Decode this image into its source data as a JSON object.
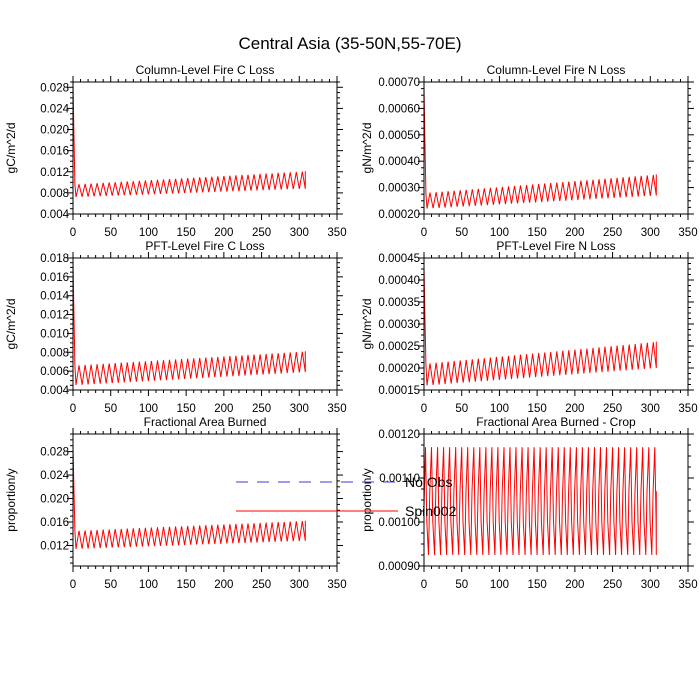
{
  "figure_title": "Central Asia (35-50N,55-70E)",
  "legend": [
    {
      "label": "No Obs",
      "color": "#3b3bd6",
      "style": "dashed"
    },
    {
      "label": "Spin002",
      "color": "#ff0000",
      "style": "solid"
    }
  ],
  "chart_data": [
    {
      "type": "line",
      "title": "Column-Level Fire C Loss",
      "xlabel": "",
      "ylabel": "gC/m^2/d",
      "xlim": [
        0,
        350
      ],
      "ylim": [
        0.004,
        0.029
      ],
      "xticks": [
        0,
        50,
        100,
        150,
        200,
        250,
        300,
        350
      ],
      "xtick_labels": [
        "0",
        "50",
        "100",
        "150",
        "200",
        "250",
        "300",
        "350"
      ],
      "yticks": [
        0.004,
        0.008,
        0.012,
        0.016,
        0.02,
        0.024,
        0.028
      ],
      "ytick_labels": [
        "0.004",
        "0.008",
        "0.012",
        "0.016",
        "0.020",
        "0.024",
        "0.028"
      ],
      "series": [
        {
          "name": "Spin002",
          "color": "#ff0000",
          "x_end": 308,
          "initial_value": 0.029,
          "trough_start": 0.0072,
          "trough_end": 0.0088,
          "peak_start": 0.0096,
          "peak_end": 0.0121,
          "cycle_length": 8
        }
      ]
    },
    {
      "type": "line",
      "title": "Column-Level Fire N Loss",
      "xlabel": "",
      "ylabel": "gN/m^2/d",
      "xlim": [
        0,
        350
      ],
      "ylim": [
        0.0002,
        0.0007
      ],
      "xticks": [
        0,
        50,
        100,
        150,
        200,
        250,
        300,
        350
      ],
      "xtick_labels": [
        "0",
        "50",
        "100",
        "150",
        "200",
        "250",
        "300",
        "350"
      ],
      "yticks": [
        0.0002,
        0.0003,
        0.0004,
        0.0005,
        0.0006,
        0.0007
      ],
      "ytick_labels": [
        "0.00020",
        "0.00030",
        "0.00040",
        "0.00050",
        "0.00060",
        "0.00070"
      ],
      "series": [
        {
          "name": "Spin002",
          "color": "#ff0000",
          "x_end": 308,
          "initial_value": 0.00068,
          "trough_start": 0.00022,
          "trough_end": 0.00027,
          "peak_start": 0.00028,
          "peak_end": 0.00035,
          "cycle_length": 8
        }
      ]
    },
    {
      "type": "line",
      "title": "PFT-Level Fire C Loss",
      "xlabel": "",
      "ylabel": "gC/m^2/d",
      "xlim": [
        0,
        350
      ],
      "ylim": [
        0.004,
        0.018
      ],
      "xticks": [
        0,
        50,
        100,
        150,
        200,
        250,
        300,
        350
      ],
      "xtick_labels": [
        "0",
        "50",
        "100",
        "150",
        "200",
        "250",
        "300",
        "350"
      ],
      "yticks": [
        0.004,
        0.006,
        0.008,
        0.01,
        0.012,
        0.014,
        0.016,
        0.018
      ],
      "ytick_labels": [
        "0.004",
        "0.006",
        "0.008",
        "0.010",
        "0.012",
        "0.014",
        "0.016",
        "0.018"
      ],
      "series": [
        {
          "name": "Spin002",
          "color": "#ff0000",
          "x_end": 308,
          "initial_value": 0.0178,
          "trough_start": 0.0045,
          "trough_end": 0.0059,
          "peak_start": 0.0066,
          "peak_end": 0.0081,
          "cycle_length": 8
        }
      ]
    },
    {
      "type": "line",
      "title": "PFT-Level Fire N Loss",
      "xlabel": "",
      "ylabel": "gN/m^2/d",
      "xlim": [
        0,
        350
      ],
      "ylim": [
        0.00015,
        0.00045
      ],
      "xticks": [
        0,
        50,
        100,
        150,
        200,
        250,
        300,
        350
      ],
      "xtick_labels": [
        "0",
        "50",
        "100",
        "150",
        "200",
        "250",
        "300",
        "350"
      ],
      "yticks": [
        0.00015,
        0.0002,
        0.00025,
        0.0003,
        0.00035,
        0.0004,
        0.00045
      ],
      "ytick_labels": [
        "0.00015",
        "0.00020",
        "0.00025",
        "0.00030",
        "0.00035",
        "0.00040",
        "0.00045"
      ],
      "series": [
        {
          "name": "Spin002",
          "color": "#ff0000",
          "x_end": 308,
          "initial_value": 0.00043,
          "trough_start": 0.00016,
          "trough_end": 0.0002,
          "peak_start": 0.00021,
          "peak_end": 0.00026,
          "cycle_length": 8
        }
      ]
    },
    {
      "type": "line",
      "title": "Fractional Area Burned",
      "xlabel": "",
      "ylabel": "proportion/y",
      "xlim": [
        0,
        350
      ],
      "ylim": [
        0.0085,
        0.031
      ],
      "xticks": [
        0,
        50,
        100,
        150,
        200,
        250,
        300,
        350
      ],
      "xtick_labels": [
        "0",
        "50",
        "100",
        "150",
        "200",
        "250",
        "300",
        "350"
      ],
      "yticks": [
        0.012,
        0.016,
        0.02,
        0.024,
        0.028
      ],
      "ytick_labels": [
        "0.012",
        "0.016",
        "0.020",
        "0.024",
        "0.028"
      ],
      "series": [
        {
          "name": "Spin002",
          "color": "#ff0000",
          "x_end": 308,
          "initial_value": 0.0292,
          "trough_start": 0.0114,
          "trough_end": 0.0128,
          "peak_start": 0.0145,
          "peak_end": 0.0162,
          "cycle_length": 8
        }
      ]
    },
    {
      "type": "line",
      "title": "Fractional Area Burned - Crop",
      "xlabel": "",
      "ylabel": "proportion/y",
      "xlim": [
        0,
        350
      ],
      "ylim": [
        0.0009,
        0.0012
      ],
      "xticks": [
        0,
        50,
        100,
        150,
        200,
        250,
        300,
        350
      ],
      "xtick_labels": [
        "0",
        "50",
        "100",
        "150",
        "200",
        "250",
        "300",
        "350"
      ],
      "yticks": [
        0.0009,
        0.001,
        0.0011,
        0.0012
      ],
      "ytick_labels": [
        "0.00090",
        "0.00100",
        "0.00110",
        "0.00120"
      ],
      "series": [
        {
          "name": "Spin002",
          "color": "#ff0000",
          "x_end": 308,
          "value_low": 0.000925,
          "value_high": 0.00117,
          "band_low": 0.001,
          "band_high": 0.00107,
          "cycle_length": 8
        }
      ]
    }
  ]
}
